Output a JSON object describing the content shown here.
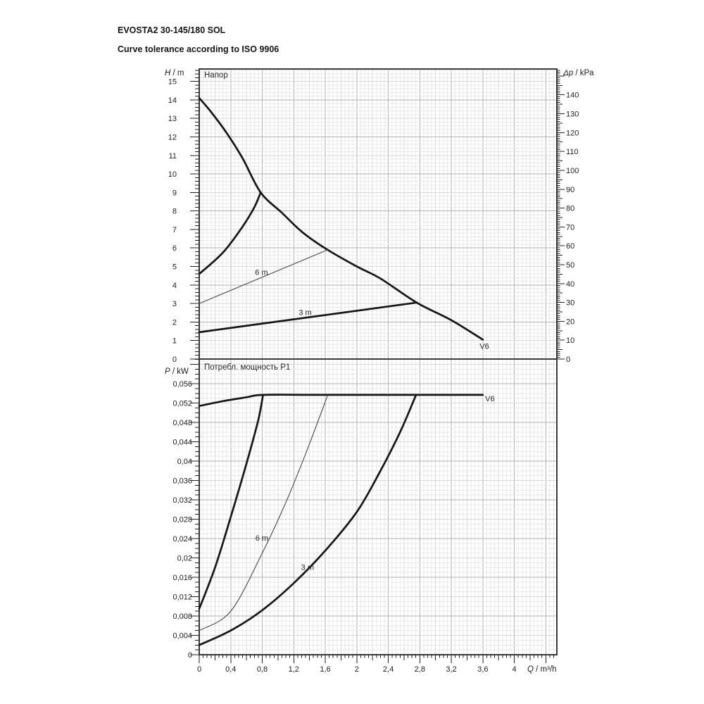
{
  "header": {
    "title": "EVOSTA2 30-145/180 SOL",
    "subtitle": "Curve tolerance according to ISO 9906"
  },
  "colors": {
    "curve": "#161616",
    "thin_curve": "#4a4a4a",
    "grid_minor": "#e9e9e9",
    "grid_medium": "#d8d8d8",
    "grid_major": "#b2b2b2",
    "frame": "#3a3a3a"
  },
  "chart_data": [
    {
      "id": "head",
      "type": "line",
      "title": "Напор",
      "ylabel": "H / m",
      "y2label": "Δp / kPa",
      "xlim": [
        0,
        4.54
      ],
      "ylim": [
        0,
        15.67
      ],
      "y2lim": [
        0,
        153.7
      ],
      "x_ticks": {
        "step": 0.4,
        "labels": [
          "0",
          "0,4",
          "0,8",
          "1,2",
          "1,6",
          "2",
          "2,4",
          "2,8",
          "3,2",
          "3,6",
          "4"
        ]
      },
      "y_ticks": {
        "step": 1,
        "labels": [
          "0",
          "1",
          "2",
          "3",
          "4",
          "5",
          "6",
          "7",
          "8",
          "9",
          "10",
          "11",
          "12",
          "13",
          "14",
          "15"
        ]
      },
      "y2_ticks": {
        "step": 10,
        "labels": [
          "0",
          "10",
          "20",
          "30",
          "40",
          "50",
          "60",
          "70",
          "80",
          "90",
          "100",
          "110",
          "120",
          "130",
          "140"
        ]
      },
      "series": [
        {
          "name": "v6-max-curve",
          "weight": "bold",
          "points": [
            [
              0,
              14.1
            ],
            [
              0.15,
              13.35
            ],
            [
              0.35,
              12.2
            ],
            [
              0.55,
              10.85
            ],
            [
              0.78,
              9.0
            ],
            [
              1.05,
              7.9
            ],
            [
              1.31,
              6.85
            ],
            [
              1.63,
              5.9
            ],
            [
              2.0,
              5.0
            ],
            [
              2.3,
              4.35
            ],
            [
              2.76,
              3.05
            ],
            [
              3.2,
              2.1
            ],
            [
              3.6,
              1.05
            ]
          ]
        },
        {
          "name": "prop-pressure-max",
          "weight": "bold",
          "points": [
            [
              0,
              4.6
            ],
            [
              0.3,
              5.75
            ],
            [
              0.55,
              7.15
            ],
            [
              0.7,
              8.2
            ],
            [
              0.78,
              9.0
            ]
          ]
        },
        {
          "name": "setpoint-6m",
          "weight": "thin",
          "points": [
            [
              0,
              3.0
            ],
            [
              1.63,
              5.9
            ]
          ]
        },
        {
          "name": "setpoint-3m",
          "weight": "bold",
          "points": [
            [
              0,
              1.45
            ],
            [
              2.76,
              3.05
            ]
          ]
        }
      ],
      "labels": [
        {
          "text": "V6",
          "q": 3.56,
          "v": 0.55,
          "anchor": "start"
        },
        {
          "text": "6 m",
          "q": 0.79,
          "v": 4.55,
          "anchor": "middle"
        },
        {
          "text": "3 m",
          "q": 1.345,
          "v": 2.38,
          "anchor": "middle"
        }
      ]
    },
    {
      "id": "power",
      "type": "line",
      "title": "Потребл. мощность P1",
      "ylabel": "P / kW",
      "xlabel": "Q / m³/h",
      "xlim": [
        0,
        4.54
      ],
      "ylim": [
        0,
        0.0611
      ],
      "x_ticks": {
        "step": 0.4,
        "labels": [
          "0",
          "0,4",
          "0,8",
          "1,2",
          "1,6",
          "2",
          "2,4",
          "2,8",
          "3,2",
          "3,6",
          "4"
        ]
      },
      "y_ticks": {
        "step": 0.004,
        "labels": [
          "0",
          "0,004",
          "0,008",
          "0,012",
          "0,016",
          "0,02",
          "0,024",
          "0,028",
          "0,032",
          "0,036",
          "0,04",
          "0,044",
          "0,048",
          "0,052",
          "0,056"
        ]
      },
      "series": [
        {
          "name": "v6-max-power",
          "weight": "bold",
          "points": [
            [
              0,
              0.0514
            ],
            [
              0.3,
              0.0524
            ],
            [
              0.6,
              0.0532
            ],
            [
              0.81,
              0.0537
            ],
            [
              1.5,
              0.0537
            ],
            [
              2.5,
              0.0537
            ],
            [
              3.6,
              0.0537
            ]
          ]
        },
        {
          "name": "prop-pressure-max-power",
          "weight": "bold",
          "points": [
            [
              0,
              0.0095
            ],
            [
              0.2,
              0.018
            ],
            [
              0.4,
              0.0285
            ],
            [
              0.6,
              0.0395
            ],
            [
              0.75,
              0.0485
            ],
            [
              0.81,
              0.0537
            ]
          ]
        },
        {
          "name": "setpoint-6m-power",
          "weight": "thin",
          "points": [
            [
              0,
              0.005
            ],
            [
              0.4,
              0.009
            ],
            [
              0.8,
              0.021
            ],
            [
              1.1,
              0.0315
            ],
            [
              1.35,
              0.0415
            ],
            [
              1.63,
              0.0536
            ]
          ]
        },
        {
          "name": "setpoint-3m-power",
          "weight": "bold",
          "points": [
            [
              0,
              0.002
            ],
            [
              0.4,
              0.005
            ],
            [
              0.8,
              0.0092
            ],
            [
              1.2,
              0.0148
            ],
            [
              1.6,
              0.0215
            ],
            [
              2.0,
              0.0295
            ],
            [
              2.3,
              0.038
            ],
            [
              2.55,
              0.046
            ],
            [
              2.75,
              0.0536
            ]
          ]
        }
      ],
      "labels": [
        {
          "text": "V6",
          "q": 3.63,
          "v": 0.0524,
          "anchor": "start"
        },
        {
          "text": "6 m",
          "q": 0.795,
          "v": 0.0236,
          "anchor": "middle"
        },
        {
          "text": "3 m",
          "q": 1.375,
          "v": 0.0175,
          "anchor": "middle"
        }
      ]
    }
  ]
}
